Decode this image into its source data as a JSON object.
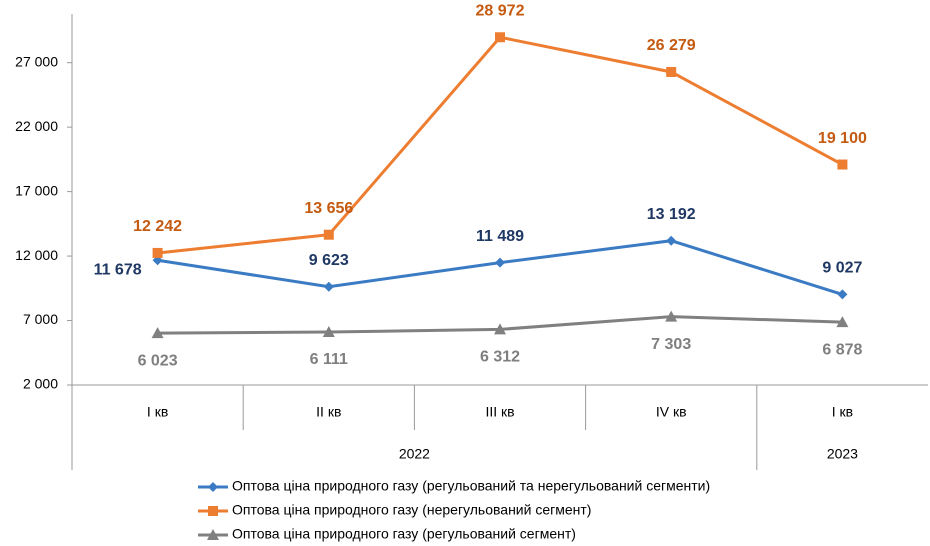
{
  "chart_data": {
    "type": "line",
    "categories": [
      "I кв",
      "II кв",
      "III кв",
      "IV кв",
      "I кв"
    ],
    "x_groups": [
      {
        "label": "2022",
        "count": 4
      },
      {
        "label": "2023",
        "count": 1
      }
    ],
    "ylim": [
      2000,
      30000
    ],
    "yticks": [
      {
        "value": 2000,
        "label": "2 000"
      },
      {
        "value": 7000,
        "label": "7 000"
      },
      {
        "value": 12000,
        "label": "12 000"
      },
      {
        "value": 17000,
        "label": "17 000"
      },
      {
        "value": 22000,
        "label": "22 000"
      },
      {
        "value": 27000,
        "label": "27 000"
      }
    ],
    "grid": false,
    "legend": "bottom",
    "series": [
      {
        "name": "Оптова ціна природного газу (регульований та нерегульований сегменти)",
        "color": "#3b7bc4",
        "label_color": "#1f3864",
        "marker": "diamond",
        "label_position": "above",
        "values": [
          11678,
          9623,
          11489,
          13192,
          9027
        ],
        "value_labels": [
          "11 678",
          "9 623",
          "11 489",
          "13 192",
          "9 027"
        ]
      },
      {
        "name": "Оптова ціна природного газу (нерегульований сегмент)",
        "color": "#ed7d31",
        "label_color": "#c55a11",
        "marker": "square",
        "label_position": "above",
        "values": [
          12242,
          13656,
          28972,
          26279,
          19100
        ],
        "value_labels": [
          "12 242",
          "13 656",
          "28 972",
          "26 279",
          "19 100"
        ]
      },
      {
        "name": "Оптова ціна природного газу (регульований сегмент)",
        "color": "#808080",
        "label_color": "#7f7f7f",
        "marker": "triangle",
        "label_position": "below",
        "values": [
          6023,
          6111,
          6312,
          7303,
          6878
        ],
        "value_labels": [
          "6 023",
          "6 111",
          "6 312",
          "7 303",
          "6 878"
        ]
      }
    ]
  }
}
